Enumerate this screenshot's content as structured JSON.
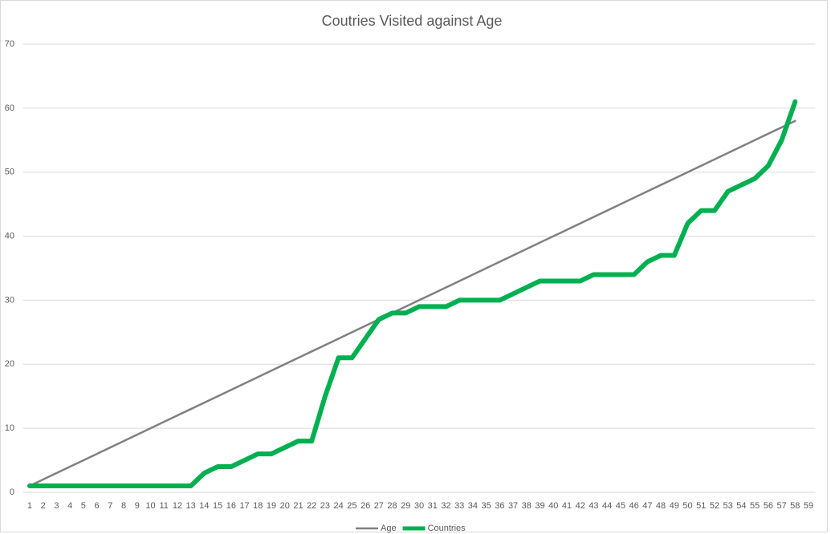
{
  "chart_data": {
    "type": "line",
    "title": "Coutries Visited against Age",
    "categories": [
      1,
      2,
      3,
      4,
      5,
      6,
      7,
      8,
      9,
      10,
      11,
      12,
      13,
      14,
      15,
      16,
      17,
      18,
      19,
      20,
      21,
      22,
      23,
      24,
      25,
      26,
      27,
      28,
      29,
      30,
      31,
      32,
      33,
      34,
      35,
      36,
      37,
      38,
      39,
      40,
      41,
      42,
      43,
      44,
      45,
      46,
      47,
      48,
      49,
      50,
      51,
      52,
      53,
      54,
      55,
      56,
      57,
      58,
      59
    ],
    "series": [
      {
        "name": "Age",
        "color": "#808080",
        "values": [
          1,
          2,
          3,
          4,
          5,
          6,
          7,
          8,
          9,
          10,
          11,
          12,
          13,
          14,
          15,
          16,
          17,
          18,
          19,
          20,
          21,
          22,
          23,
          24,
          25,
          26,
          27,
          28,
          29,
          30,
          31,
          32,
          33,
          34,
          35,
          36,
          37,
          38,
          39,
          40,
          41,
          42,
          43,
          44,
          45,
          46,
          47,
          48,
          49,
          50,
          51,
          52,
          53,
          54,
          55,
          56,
          57,
          58,
          null
        ]
      },
      {
        "name": "Countries",
        "color": "#00b050",
        "values": [
          1,
          1,
          1,
          1,
          1,
          1,
          1,
          1,
          1,
          1,
          1,
          1,
          1,
          3,
          4,
          4,
          5,
          6,
          6,
          7,
          8,
          8,
          15,
          21,
          21,
          24,
          27,
          28,
          28,
          29,
          29,
          29,
          30,
          30,
          30,
          30,
          31,
          32,
          33,
          33,
          33,
          33,
          34,
          34,
          34,
          34,
          36,
          37,
          37,
          42,
          44,
          44,
          47,
          48,
          49,
          51,
          55,
          61,
          null
        ]
      }
    ],
    "ylim": [
      0,
      70
    ],
    "yticks": [
      0,
      10,
      20,
      30,
      40,
      50,
      60,
      70
    ],
    "grid": true,
    "legend": "bottom"
  }
}
